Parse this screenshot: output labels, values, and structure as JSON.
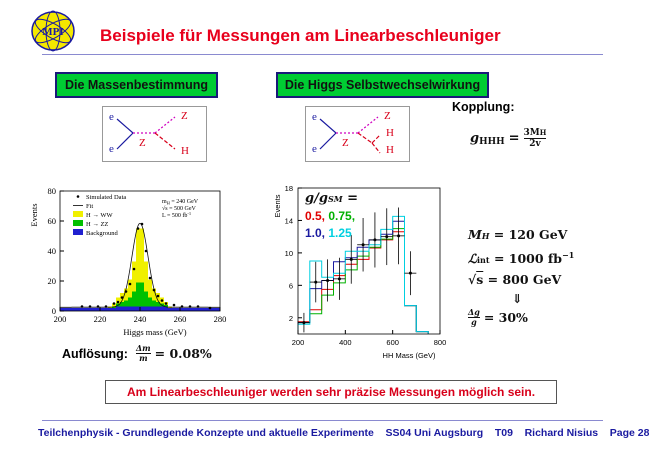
{
  "logo": {
    "text": "MPI"
  },
  "title": "Beispiele für Messungen am Linearbeschleuniger",
  "left_box": "Die Massenbestimmung",
  "right_box": "Die Higgs Selbstwechselwirkung",
  "diagram_left": {
    "e_top": "e",
    "e_bottom": "e",
    "Z_mid": "Z",
    "Z_out": "Z",
    "H_out": "H"
  },
  "diagram_right": {
    "e_top": "e",
    "e_bottom": "e",
    "Z_mid": "Z",
    "Z_out": "Z",
    "H_out1": "H",
    "H_out2": "H"
  },
  "kopplung": {
    "label": "Kopplung:",
    "formula_lhs": "g",
    "formula_sub": "HHH",
    "formula_num": "3M",
    "formula_num_sub": "H",
    "formula_den": "2v"
  },
  "params": {
    "mh": "= 120 GeV",
    "lumi_value": "= 1000 fb",
    "lumi_exp": "−1",
    "sqrt_s": "= 800 GeV",
    "arrow": "⇓",
    "delta_g": "= 30%"
  },
  "resolution": {
    "label": "Auflösung:",
    "value": "= 0.08%"
  },
  "conclusion": "Am Linearbeschleuniger werden sehr präzise Messungen möglich sein.",
  "footer": "Teilchenphysik - Grundlegende Konzepte und aktuelle Experimente    SS04 Uni Augsburg    T09    Richard Nisius    Page 28",
  "colors": {
    "title": "#e8001c",
    "box_green": "#00cc33",
    "footer": "#1a1aa0"
  },
  "chart_data": [
    {
      "type": "bar",
      "xlabel": "Higgs mass (GeV)",
      "ylabel": "Events",
      "xlim": [
        200,
        280
      ],
      "ylim": [
        0,
        80
      ],
      "xticks": [
        200,
        220,
        240,
        260,
        280
      ],
      "yticks": [
        0,
        20,
        40,
        60,
        80
      ],
      "annotation": [
        "m",
        "H",
        " = 240 GeV",
        "√s = 500 GeV",
        "L = 500 fb",
        "-1"
      ],
      "legend": [
        "Simulated Data",
        "Fit",
        "H → WW",
        "H → ZZ",
        "Background"
      ],
      "bin_edges": [
        200,
        202,
        204,
        206,
        208,
        210,
        212,
        214,
        216,
        218,
        220,
        222,
        224,
        226,
        228,
        230,
        232,
        234,
        236,
        238,
        240,
        242,
        244,
        246,
        248,
        250,
        252,
        254,
        256,
        258,
        260,
        262,
        264,
        266,
        268,
        270,
        272,
        274,
        276,
        278,
        280
      ],
      "series": [
        {
          "name": "Background",
          "values": [
            2,
            2,
            2,
            2,
            2,
            2,
            2,
            2,
            2,
            2,
            2,
            2,
            2,
            2,
            3,
            3,
            3,
            3,
            3,
            3,
            3,
            3,
            3,
            3,
            3,
            3,
            3,
            2,
            2,
            2,
            2,
            2,
            2,
            2,
            2,
            2,
            2,
            2,
            2,
            2
          ]
        },
        {
          "name": "H → ZZ",
          "values": [
            0,
            0,
            0,
            0,
            0,
            0,
            0,
            0,
            0,
            0,
            0,
            0,
            0,
            1,
            2,
            3,
            4,
            6,
            10,
            16,
            16,
            10,
            6,
            4,
            3,
            2,
            1,
            0,
            0,
            0,
            0,
            0,
            0,
            0,
            0,
            0,
            0,
            0,
            0,
            0
          ]
        },
        {
          "name": "H → WW",
          "values": [
            0,
            0,
            0,
            0,
            0,
            0,
            0,
            0,
            0,
            0,
            0,
            0,
            1,
            2,
            4,
            6,
            8,
            12,
            20,
            36,
            36,
            20,
            12,
            8,
            6,
            4,
            2,
            1,
            0,
            0,
            0,
            0,
            0,
            0,
            0,
            0,
            0,
            0,
            0,
            0
          ]
        }
      ],
      "data_points": {
        "x": [
          211,
          215,
          219,
          223,
          227,
          229,
          231,
          233,
          235,
          237,
          239,
          241,
          243,
          245,
          247,
          249,
          251,
          253,
          257,
          261,
          265,
          269,
          275
        ],
        "y": [
          3,
          3,
          3,
          3,
          5,
          6,
          9,
          13,
          18,
          28,
          55,
          58,
          40,
          22,
          14,
          10,
          7,
          5,
          4,
          3,
          3,
          3,
          2
        ]
      },
      "fit_peak": 240
    },
    {
      "type": "bar",
      "xlabel": "HH Mass (GeV)",
      "ylabel": "Events",
      "xlim": [
        200,
        800
      ],
      "ylim": [
        0,
        18
      ],
      "xticks": [
        200,
        400,
        600,
        800
      ],
      "yticks": [
        2,
        6,
        10,
        14,
        18
      ],
      "legend_title": "g/g",
      "legend_sub": "SM",
      "legend_eq": " =",
      "legend_red": "0.5,",
      "legend_green": "0.75,",
      "legend_blue": "1.0,",
      "legend_cyan": "1.25",
      "bin_edges": [
        200,
        250,
        300,
        350,
        400,
        450,
        500,
        550,
        600,
        650,
        700,
        750
      ],
      "series": [
        {
          "name": "0.5",
          "color": "#e00000",
          "values": [
            1.5,
            3.0,
            5.5,
            7.2,
            8.6,
            9.2,
            10.6,
            11.6,
            12.6,
            3.5,
            0.3
          ]
        },
        {
          "name": "0.75",
          "color": "#00b000",
          "values": [
            1.4,
            2.5,
            4.8,
            6.3,
            7.9,
            9.6,
            10.7,
            11.7,
            13.0,
            3.5,
            0.3
          ]
        },
        {
          "name": "1.0",
          "color": "#1a1aa0",
          "values": [
            1.4,
            5.6,
            6.6,
            8.9,
            9.4,
            10.7,
            11.6,
            12.3,
            13.9,
            3.5,
            0.3
          ]
        },
        {
          "name": "1.25",
          "color": "#00d0e0",
          "values": [
            1.2,
            9.0,
            7.0,
            7.5,
            10.2,
            10.2,
            11.0,
            12.9,
            14.5,
            3.5,
            0.3
          ]
        }
      ],
      "data_points": {
        "x": [
          225,
          275,
          325,
          375,
          425,
          475,
          525,
          575,
          625,
          675
        ],
        "y": [
          1.4,
          6.4,
          6.6,
          6.8,
          9.2,
          11.0,
          11.6,
          12.0,
          12.1,
          7.5
        ],
        "yerr": [
          1.2,
          2.5,
          2.6,
          2.6,
          3.0,
          3.3,
          3.4,
          3.5,
          3.5,
          2.7
        ]
      }
    }
  ]
}
